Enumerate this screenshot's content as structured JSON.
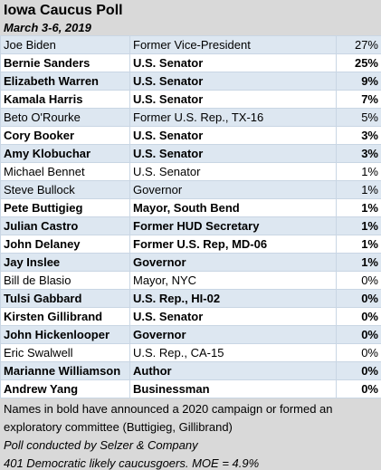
{
  "header": {
    "title": "Iowa Caucus Poll",
    "subtitle": "March 3-6, 2019"
  },
  "table": {
    "rows": [
      {
        "name": "Joe Biden",
        "title": "Former Vice-President",
        "poll": "27%",
        "bold": false
      },
      {
        "name": "Bernie Sanders",
        "title": "U.S. Senator",
        "poll": "25%",
        "bold": true
      },
      {
        "name": "Elizabeth Warren",
        "title": "U.S. Senator",
        "poll": "9%",
        "bold": true
      },
      {
        "name": "Kamala Harris",
        "title": "U.S. Senator",
        "poll": "7%",
        "bold": true
      },
      {
        "name": "Beto O'Rourke",
        "title": "Former U.S. Rep., TX-16",
        "poll": "5%",
        "bold": false
      },
      {
        "name": "Cory Booker",
        "title": "U.S. Senator",
        "poll": "3%",
        "bold": true
      },
      {
        "name": "Amy Klobuchar",
        "title": "U.S. Senator",
        "poll": "3%",
        "bold": true
      },
      {
        "name": "Michael Bennet",
        "title": "U.S. Senator",
        "poll": "1%",
        "bold": false
      },
      {
        "name": "Steve Bullock",
        "title": "Governor",
        "poll": "1%",
        "bold": false
      },
      {
        "name": "Pete Buttigieg",
        "title": "Mayor, South Bend",
        "poll": "1%",
        "bold": true
      },
      {
        "name": "Julian Castro",
        "title": "Former HUD Secretary",
        "poll": "1%",
        "bold": true
      },
      {
        "name": "John Delaney",
        "title": "Former U.S. Rep, MD-06",
        "poll": "1%",
        "bold": true
      },
      {
        "name": "Jay Inslee",
        "title": "Governor",
        "poll": "1%",
        "bold": true
      },
      {
        "name": "Bill de Blasio",
        "title": "Mayor, NYC",
        "poll": "0%",
        "bold": false
      },
      {
        "name": "Tulsi Gabbard",
        "title": "U.S. Rep., HI-02",
        "poll": "0%",
        "bold": true
      },
      {
        "name": "Kirsten Gillibrand",
        "title": "U.S. Senator",
        "poll": "0%",
        "bold": true
      },
      {
        "name": "John Hickenlooper",
        "title": "Governor",
        "poll": "0%",
        "bold": true
      },
      {
        "name": "Eric Swalwell",
        "title": "U.S. Rep., CA-15",
        "poll": "0%",
        "bold": false
      },
      {
        "name": "Marianne Williamson",
        "title": "Author",
        "poll": "0%",
        "bold": true
      },
      {
        "name": "Andrew Yang",
        "title": "Businessman",
        "poll": "0%",
        "bold": true
      }
    ]
  },
  "footer": {
    "notes": [
      "Names in bold have announced a 2020 campaign or formed an exploratory committee (Buttigieg, Gillibrand)",
      "Poll conducted by Selzer & Company",
      "401 Democratic likely caucusgoers. MOE = 4.9%"
    ]
  }
}
